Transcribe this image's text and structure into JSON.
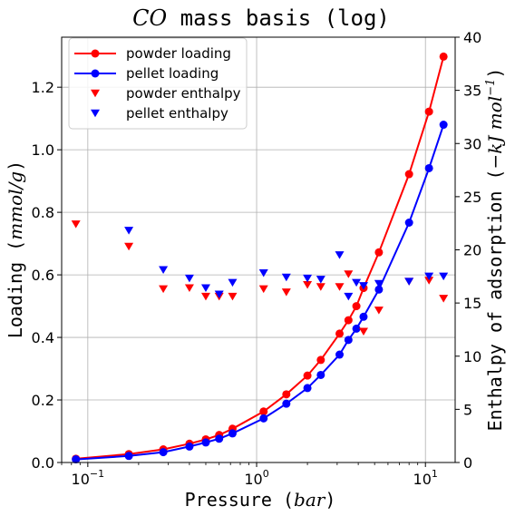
{
  "chart_data": {
    "type": "line",
    "title": "CO mass basis (log)",
    "title_parts": {
      "italic": "CO",
      "rest": " mass basis (log)"
    },
    "xlabel": "Pressure (bar)",
    "xlabel_parts": {
      "text": "Pressure (",
      "unit": "bar",
      "close": ")"
    },
    "ylabel": "Loading (mmol/g)",
    "ylabel_parts": {
      "text": "Loading (",
      "unit": "mmol/g",
      "close": ")"
    },
    "y2label": "Enthalpy of adsorption (−kJ mol⁻¹)",
    "y2label_parts": {
      "text": "Enthalpy of adsorption (",
      "unit": "−kJ mol",
      "sup": "−1",
      "close": ")"
    },
    "xscale": "log",
    "xlim": [
      0.07,
      15
    ],
    "ylim": [
      0,
      1.36
    ],
    "y2lim": [
      0,
      40
    ],
    "xticks": [
      {
        "value": 0.1,
        "base": "10",
        "exp": "−1"
      },
      {
        "value": 1,
        "base": "10",
        "exp": "0"
      },
      {
        "value": 10,
        "base": "10",
        "exp": "1"
      }
    ],
    "yticks": [
      "0.0",
      "0.2",
      "0.4",
      "0.6",
      "0.8",
      "1.0",
      "1.2"
    ],
    "y2ticks": [
      "0",
      "5",
      "10",
      "15",
      "20",
      "25",
      "30",
      "35",
      "40"
    ],
    "grid": true,
    "legend_position": "top-left",
    "colors": {
      "red": "#ff0000",
      "blue": "#0000ff"
    },
    "series": [
      {
        "name": "powder loading",
        "axis": "left",
        "style": "line-marker",
        "color": "#ff0000",
        "x": [
          0.085,
          0.175,
          0.28,
          0.4,
          0.5,
          0.6,
          0.72,
          1.1,
          1.5,
          2.0,
          2.4,
          3.1,
          3.5,
          3.9,
          4.3,
          5.3,
          8.0,
          10.5,
          12.8
        ],
        "y": [
          0.012,
          0.027,
          0.042,
          0.06,
          0.074,
          0.088,
          0.108,
          0.163,
          0.218,
          0.278,
          0.328,
          0.412,
          0.455,
          0.5,
          0.558,
          0.672,
          0.922,
          1.122,
          1.298
        ]
      },
      {
        "name": "pellet loading",
        "axis": "left",
        "style": "line-marker",
        "color": "#0000ff",
        "x": [
          0.085,
          0.175,
          0.28,
          0.4,
          0.5,
          0.6,
          0.72,
          1.1,
          1.5,
          2.0,
          2.4,
          3.1,
          3.5,
          3.9,
          4.3,
          5.3,
          8.0,
          10.5,
          12.8
        ],
        "y": [
          0.01,
          0.021,
          0.033,
          0.051,
          0.064,
          0.076,
          0.093,
          0.141,
          0.188,
          0.238,
          0.28,
          0.345,
          0.392,
          0.428,
          0.466,
          0.553,
          0.767,
          0.941,
          1.08
        ]
      },
      {
        "name": "powder enthalpy",
        "axis": "right",
        "style": "marker-tri-down",
        "color": "#ff0000",
        "x": [
          0.085,
          0.175,
          0.28,
          0.4,
          0.5,
          0.6,
          0.72,
          1.1,
          1.5,
          2.0,
          2.4,
          3.1,
          3.5,
          4.3,
          5.3,
          8.0,
          10.5,
          12.8
        ],
        "y": [
          22.4,
          20.3,
          16.3,
          16.4,
          15.6,
          15.6,
          15.6,
          16.3,
          16.0,
          16.7,
          16.5,
          16.5,
          17.7,
          12.3,
          14.3,
          17.0,
          17.1,
          15.4
        ]
      },
      {
        "name": "pellet enthalpy",
        "axis": "right",
        "style": "marker-tri-down",
        "color": "#0000ff",
        "x": [
          0.175,
          0.28,
          0.4,
          0.5,
          0.6,
          0.72,
          1.1,
          1.5,
          2.0,
          2.4,
          3.1,
          3.5,
          3.9,
          4.3,
          5.3,
          8.0,
          10.5,
          12.8
        ],
        "y": [
          21.8,
          18.1,
          17.3,
          16.4,
          15.8,
          16.9,
          17.8,
          17.4,
          17.3,
          17.2,
          19.5,
          15.6,
          16.9,
          16.6,
          16.8,
          17.0,
          17.5,
          17.5
        ]
      }
    ]
  }
}
